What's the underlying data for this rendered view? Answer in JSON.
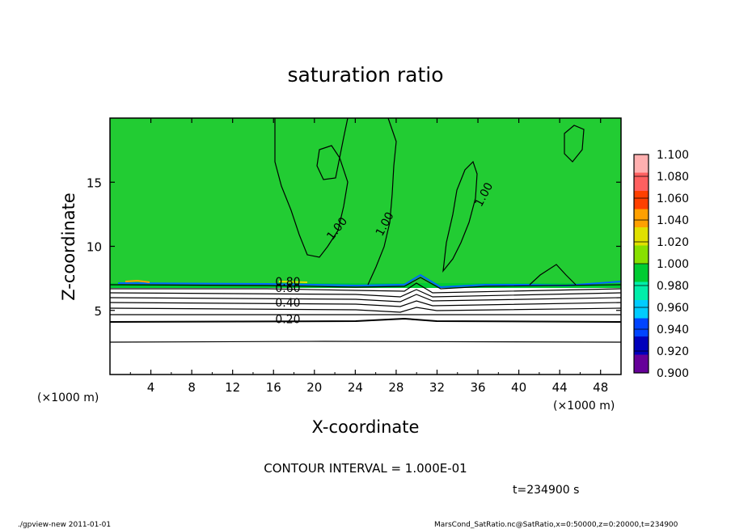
{
  "chart_data": {
    "type": "heatmap",
    "title": "saturation ratio",
    "xlabel": "X-coordinate",
    "ylabel": "Z-coordinate",
    "x_unit_left": "(×1000 m)",
    "x_unit_right": "(×1000 m)",
    "xlim": [
      0,
      50
    ],
    "ylim": [
      0,
      20
    ],
    "x_ticks": [
      4,
      8,
      12,
      16,
      20,
      24,
      28,
      32,
      36,
      40,
      44,
      48
    ],
    "y_ticks": [
      5,
      10,
      15
    ],
    "colorbar": {
      "levels": [
        "1.100",
        "1.080",
        "1.060",
        "1.040",
        "1.020",
        "1.000",
        "0.980",
        "0.960",
        "0.940",
        "0.920",
        "0.900"
      ],
      "colors": [
        "#ffb0b0",
        "#ff6060",
        "#ff4000",
        "#ffa000",
        "#e0e000",
        "#88e000",
        "#00cc33",
        "#00eeaa",
        "#00ccff",
        "#0044ff",
        "#0000bb",
        "#660099"
      ]
    },
    "fill_color_main": "#22cc33",
    "contour_labels": [
      {
        "text": "1.00",
        "x": 22.5,
        "z": 11.2,
        "angle": -52
      },
      {
        "text": "1.00",
        "x": 27.2,
        "z": 11.6,
        "angle": -62
      },
      {
        "text": "1.00",
        "x": 36.9,
        "z": 13.9,
        "angle": -62
      },
      {
        "text": "0.80",
        "x": 17.4,
        "z": 6.95,
        "angle": 0
      },
      {
        "text": "0.60",
        "x": 17.4,
        "z": 6.45,
        "angle": 0
      },
      {
        "text": "0.40",
        "x": 17.4,
        "z": 5.3,
        "angle": 0
      },
      {
        "text": "0.20",
        "x": 17.4,
        "z": 4.0,
        "angle": 0
      }
    ],
    "contour_interval": "CONTOUR INTERVAL = 1.000E-01",
    "time_label": "t=234900 s"
  },
  "footer": {
    "left": "./gpview-new  2011-01-01",
    "right": "MarsCond_SatRatio.nc@SatRatio,x=0:50000,z=0:20000,t=234900"
  }
}
